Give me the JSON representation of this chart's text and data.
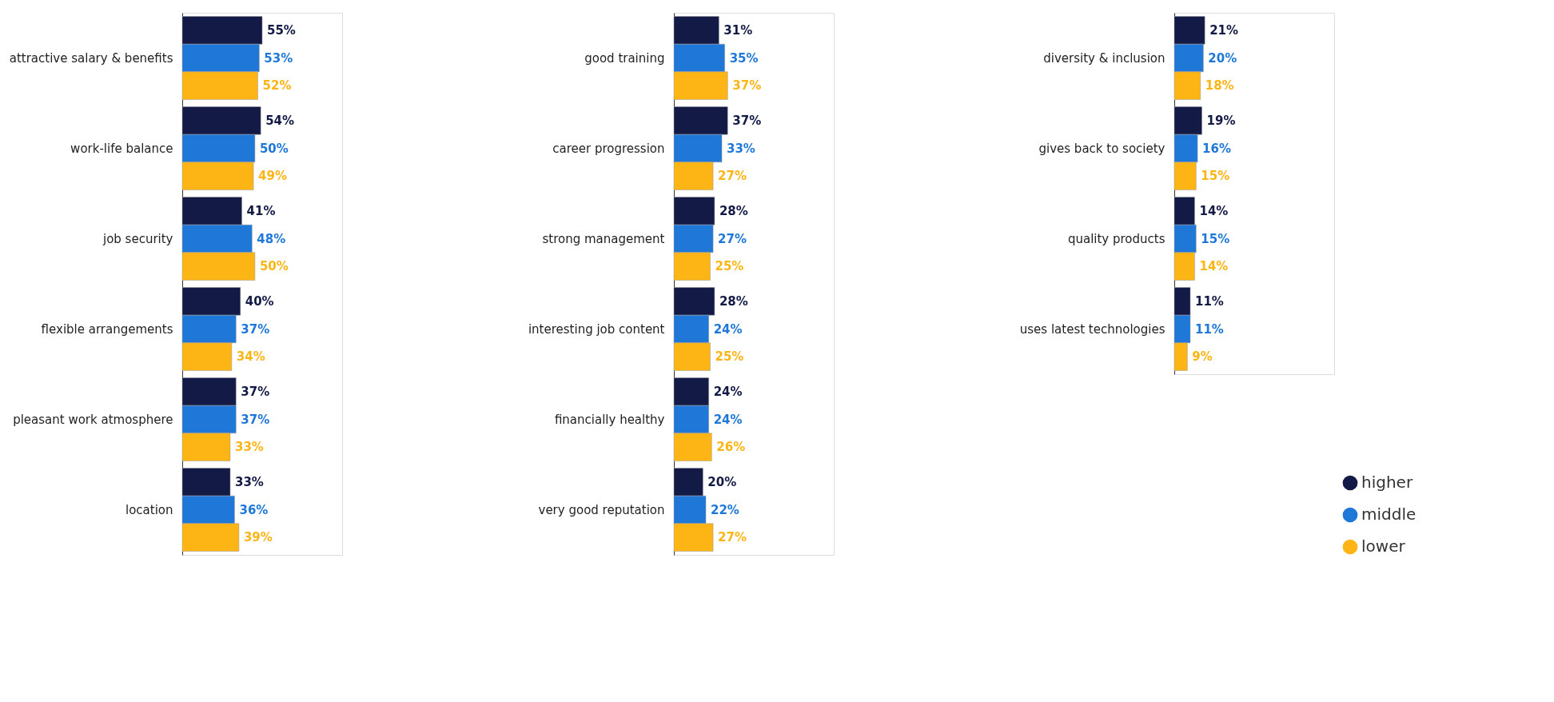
{
  "chart_data": [
    {
      "type": "bar",
      "orientation": "horizontal",
      "categories": [
        "attractive salary & benefits",
        "work-life balance",
        "job security",
        "flexible arrangements",
        "pleasant work atmosphere",
        "location"
      ],
      "series": [
        {
          "color": "#121a45",
          "values": [
            55,
            54,
            41,
            40,
            37,
            33
          ],
          "value_labels": [
            "55%",
            "54%",
            "41%",
            "40%",
            "37%",
            "33%"
          ]
        },
        {
          "color": "#1f78d8",
          "values": [
            53,
            50,
            48,
            37,
            37,
            36
          ],
          "value_labels": [
            "53%",
            "50%",
            "48%",
            "37%",
            "37%",
            "36%"
          ]
        },
        {
          "color": "#fdb515",
          "values": [
            52,
            49,
            50,
            34,
            33,
            39
          ],
          "value_labels": [
            "52%",
            "49%",
            "50%",
            "34%",
            "33%",
            "39%"
          ]
        }
      ]
    },
    {
      "type": "bar",
      "orientation": "horizontal",
      "categories": [
        "good training",
        "career progression",
        "strong management",
        "interesting job content",
        "financially healthy",
        "very good reputation"
      ],
      "series": [
        {
          "color": "#121a45",
          "values": [
            31,
            37,
            28,
            28,
            24,
            20
          ],
          "value_labels": [
            "31%",
            "37%",
            "28%",
            "28%",
            "24%",
            "20%"
          ]
        },
        {
          "color": "#1f78d8",
          "values": [
            35,
            33,
            27,
            24,
            24,
            22
          ],
          "value_labels": [
            "35%",
            "33%",
            "27%",
            "24%",
            "24%",
            "22%"
          ]
        },
        {
          "color": "#fdb515",
          "values": [
            37,
            27,
            25,
            25,
            26,
            27
          ],
          "value_labels": [
            "37%",
            "27%",
            "25%",
            "25%",
            "26%",
            "27%"
          ]
        }
      ]
    },
    {
      "type": "bar",
      "orientation": "horizontal",
      "legend": "bottom right",
      "categories": [
        "diversity & inclusion",
        "gives back to society",
        "quality products",
        "uses latest technologies"
      ],
      "series": [
        {
          "name": "higher",
          "color": "#121a45",
          "values": [
            21,
            19,
            14,
            11
          ],
          "value_labels": [
            "21%",
            "19%",
            "14%",
            "11%"
          ]
        },
        {
          "name": "middle",
          "color": "#1f78d8",
          "values": [
            20,
            16,
            15,
            11
          ],
          "value_labels": [
            "20%",
            "16%",
            "15%",
            "11%"
          ]
        },
        {
          "name": "lower",
          "color": "#fdb515",
          "values": [
            18,
            15,
            14,
            9
          ],
          "value_labels": [
            "18%",
            "15%",
            "14%",
            "9%"
          ]
        }
      ]
    }
  ]
}
